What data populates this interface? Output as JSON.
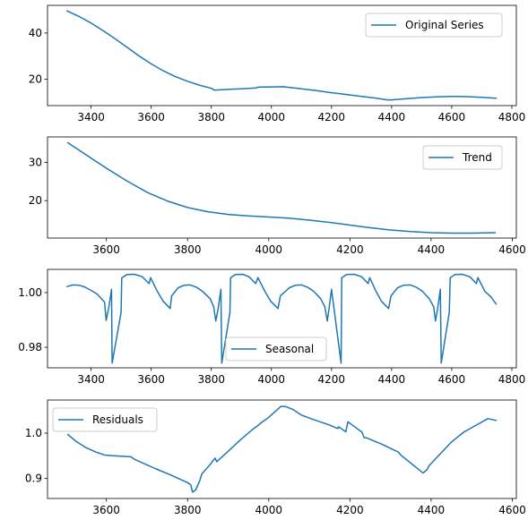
{
  "chart_data": [
    {
      "type": "line",
      "title": "",
      "xlabel": "",
      "ylabel": "",
      "xlim": [
        3255,
        4815
      ],
      "ylim": [
        8.5,
        52
      ],
      "x_ticks": [
        "3400",
        "3600",
        "3800",
        "4000",
        "4200",
        "4400",
        "4600",
        "4800"
      ],
      "y_ticks": [
        "20",
        "40"
      ],
      "grid": false,
      "legend_position": "top-right",
      "series": [
        {
          "name": "Original Series",
          "color": "#1f77b4",
          "x": [
            3320,
            3360,
            3400,
            3440,
            3480,
            3520,
            3560,
            3600,
            3640,
            3680,
            3720,
            3760,
            3800,
            3810,
            3850,
            3900,
            3950,
            3955,
            4000,
            4040,
            4100,
            4150,
            4200,
            4250,
            4300,
            4350,
            4385,
            4400,
            4450,
            4500,
            4550,
            4600,
            4650,
            4700,
            4748
          ],
          "y": [
            49.6,
            47.2,
            44.3,
            41.0,
            37.5,
            33.8,
            30.0,
            26.6,
            23.6,
            21.1,
            19.1,
            17.4,
            16.0,
            15.2,
            15.5,
            15.8,
            16.2,
            16.5,
            16.6,
            16.7,
            15.8,
            15.0,
            14.1,
            13.3,
            12.5,
            11.7,
            11.0,
            11.0,
            11.5,
            12.0,
            12.3,
            12.5,
            12.4,
            12.1,
            11.7
          ]
        }
      ]
    },
    {
      "type": "line",
      "title": "",
      "xlabel": "",
      "ylabel": "",
      "xlim": [
        3455,
        4610
      ],
      "ylim": [
        10.2,
        36.7
      ],
      "x_ticks": [
        "3600",
        "3800",
        "4000",
        "4200",
        "4400",
        "4600"
      ],
      "y_ticks": [
        "20",
        "30"
      ],
      "grid": false,
      "legend_position": "top-right",
      "series": [
        {
          "name": "Trend",
          "color": "#1f77b4",
          "x": [
            3505,
            3550,
            3600,
            3650,
            3700,
            3750,
            3800,
            3850,
            3900,
            3950,
            4000,
            4050,
            4100,
            4150,
            4200,
            4250,
            4300,
            4350,
            4400,
            4450,
            4500,
            4558
          ],
          "y": [
            35.2,
            32.0,
            28.5,
            25.2,
            22.2,
            19.9,
            18.2,
            17.1,
            16.4,
            16.0,
            15.7,
            15.4,
            14.9,
            14.3,
            13.6,
            12.9,
            12.3,
            11.9,
            11.6,
            11.5,
            11.5,
            11.6
          ]
        }
      ]
    },
    {
      "type": "line",
      "title": "",
      "xlabel": "",
      "ylabel": "",
      "xlim": [
        3255,
        4815
      ],
      "ylim": [
        0.9725,
        1.0085
      ],
      "x_ticks": [
        "3400",
        "3600",
        "3800",
        "4000",
        "4200",
        "4400",
        "4600",
        "4800"
      ],
      "y_ticks": [
        "0.98",
        "1.00"
      ],
      "grid": false,
      "legend_position": "bottom-center",
      "series": [
        {
          "name": "Seasonal",
          "color": "#1f77b4",
          "x": [
            3320,
            3340,
            3360,
            3380,
            3400,
            3420,
            3445,
            3450,
            3460,
            3468,
            3470,
            3500,
            3502,
            3520,
            3545,
            3570,
            3593,
            3598,
            3620,
            3640,
            3663,
            3668,
            3690,
            3710,
            3730,
            3750,
            3770,
            3796,
            3808,
            3815,
            3823,
            3832,
            3835,
            3862,
            3864,
            3880,
            3905,
            3925,
            3948,
            3955,
            3978,
            3998,
            4022,
            4030,
            4060,
            4080,
            4100,
            4120,
            4140,
            4164,
            4178,
            4186,
            4192,
            4200,
            4232,
            4234,
            4250,
            4275,
            4300,
            4322,
            4327,
            4348,
            4366,
            4390,
            4398,
            4420,
            4440,
            4462,
            4482,
            4502,
            4525,
            4540,
            4546,
            4553,
            4562,
            4565,
            4592,
            4595,
            4610,
            4635,
            4660,
            4682,
            4687,
            4710,
            4730,
            4748
          ],
          "y": [
            1.0022,
            1.0028,
            1.0027,
            1.002,
            1.0008,
            0.9995,
            0.9965,
            0.9898,
            0.9952,
            1.0012,
            0.9742,
            0.9928,
            1.0054,
            1.0066,
            1.0067,
            1.0058,
            1.0033,
            1.0055,
            1.0005,
            0.9968,
            0.9942,
            0.9988,
            1.0018,
            1.0027,
            1.0028,
            1.002,
            1.0005,
            0.9978,
            0.9948,
            0.9896,
            0.9942,
            1.0012,
            0.9742,
            0.9928,
            1.0054,
            1.0066,
            1.0067,
            1.0058,
            1.0033,
            1.0055,
            1.0005,
            0.9968,
            0.9942,
            0.9988,
            1.0018,
            1.0027,
            1.0028,
            1.002,
            1.0005,
            0.9978,
            0.9948,
            0.9896,
            0.9942,
            1.0012,
            0.9742,
            1.0054,
            1.0066,
            1.0067,
            1.0058,
            1.0033,
            1.0055,
            1.0005,
            0.9968,
            0.9942,
            0.9988,
            1.0018,
            1.0027,
            1.0028,
            1.002,
            1.0005,
            0.9978,
            0.9948,
            0.9896,
            0.9942,
            1.0012,
            0.9742,
            0.9928,
            1.0054,
            1.0066,
            1.0067,
            1.0058,
            1.0033,
            1.0055,
            1.0005,
            0.9985,
            0.9958
          ]
        }
      ]
    },
    {
      "type": "line",
      "title": "",
      "xlabel": "",
      "ylabel": "",
      "xlim": [
        3455,
        4610
      ],
      "ylim": [
        0.856,
        1.073
      ],
      "x_ticks": [
        "3600",
        "3800",
        "4000",
        "4200",
        "4400",
        "4600"
      ],
      "y_ticks": [
        "0.9",
        "1.0"
      ],
      "grid": false,
      "legend_position": "top-left",
      "series": [
        {
          "name": "Residuals",
          "color": "#1f77b4",
          "x": [
            3505,
            3525,
            3550,
            3575,
            3595,
            3600,
            3640,
            3660,
            3670,
            3720,
            3760,
            3800,
            3808,
            3812,
            3820,
            3830,
            3835,
            3855,
            3860,
            3868,
            3872,
            3900,
            3930,
            3960,
            3975,
            3980,
            4000,
            4030,
            4040,
            4060,
            4080,
            4110,
            4150,
            4170,
            4172,
            4190,
            4195,
            4230,
            4235,
            4240,
            4280,
            4320,
            4325,
            4380,
            4390,
            4395,
            4420,
            4450,
            4480,
            4510,
            4540,
            4545,
            4560
          ],
          "y": [
            0.997,
            0.982,
            0.968,
            0.958,
            0.952,
            0.951,
            0.949,
            0.948,
            0.942,
            0.922,
            0.907,
            0.891,
            0.886,
            0.87,
            0.875,
            0.895,
            0.91,
            0.93,
            0.936,
            0.945,
            0.937,
            0.96,
            0.985,
            1.008,
            1.018,
            1.022,
            1.035,
            1.059,
            1.059,
            1.052,
            1.04,
            1.03,
            1.018,
            1.01,
            1.014,
            1.003,
            1.025,
            1.002,
            0.99,
            0.99,
            0.975,
            0.958,
            0.952,
            0.912,
            0.92,
            0.928,
            0.952,
            0.98,
            1.002,
            1.017,
            1.032,
            1.031,
            1.028
          ]
        }
      ]
    }
  ]
}
